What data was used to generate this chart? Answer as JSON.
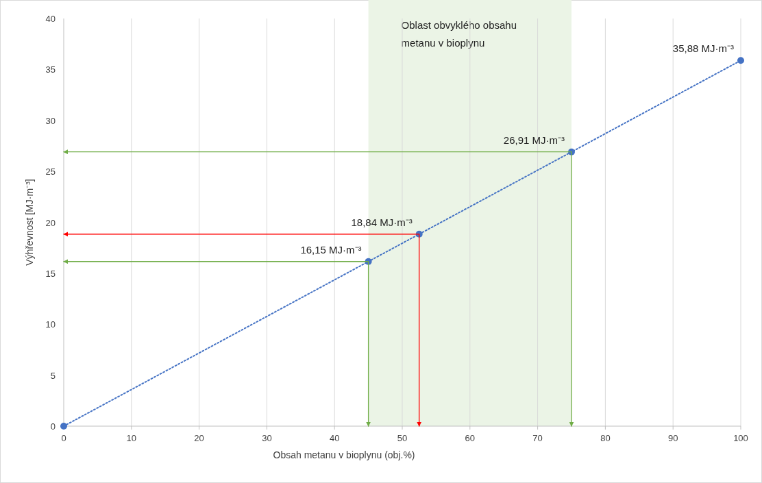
{
  "chart_data": {
    "type": "line",
    "xlabel": "Obsah metanu v bioplynu (obj.%)",
    "ylabel": "Výhřevnost [MJ·m⁻³]",
    "xlim": [
      0,
      100
    ],
    "xticks": [
      0,
      10,
      20,
      30,
      40,
      50,
      60,
      70,
      80,
      90,
      100
    ],
    "ylim": [
      0,
      40
    ],
    "yticks": [
      0,
      5,
      10,
      15,
      20,
      25,
      30,
      35,
      40
    ],
    "grid": "x",
    "series": [
      {
        "color": "#4472c4",
        "x": [
          0,
          45,
          52.5,
          75,
          100
        ],
        "values": [
          0,
          16.15,
          18.84,
          26.91,
          35.88
        ],
        "line_style": "dotted",
        "marker": "circle"
      },
      {
        "color": "#70ad47",
        "x": [
          0,
          45,
          45
        ],
        "values": [
          16.15,
          16.15,
          0
        ],
        "line_style": "solid"
      },
      {
        "color": "#ff0000",
        "x": [
          0,
          52.5,
          52.5
        ],
        "values": [
          18.84,
          18.84,
          0
        ],
        "line_style": "solid"
      },
      {
        "color": "#70ad47",
        "x": [
          0,
          75,
          75
        ],
        "values": [
          26.91,
          26.91,
          0
        ],
        "line_style": "solid"
      }
    ],
    "bands": [
      {
        "axis": "x",
        "from": 45,
        "to": 75,
        "label": "Oblast obvyklého obsahu metanu v bioplynu",
        "color": "#ebf4e6"
      }
    ],
    "annotations": [
      {
        "text": "16,15 MJ·m⁻³",
        "x": 45,
        "y": 16.15
      },
      {
        "text": "18,84 MJ·m⁻³",
        "x": 52.5,
        "y": 18.84
      },
      {
        "text": "26,91 MJ·m⁻³",
        "x": 75,
        "y": 26.91
      },
      {
        "text": "35,88 MJ·m⁻³",
        "x": 100,
        "y": 35.88
      }
    ]
  }
}
